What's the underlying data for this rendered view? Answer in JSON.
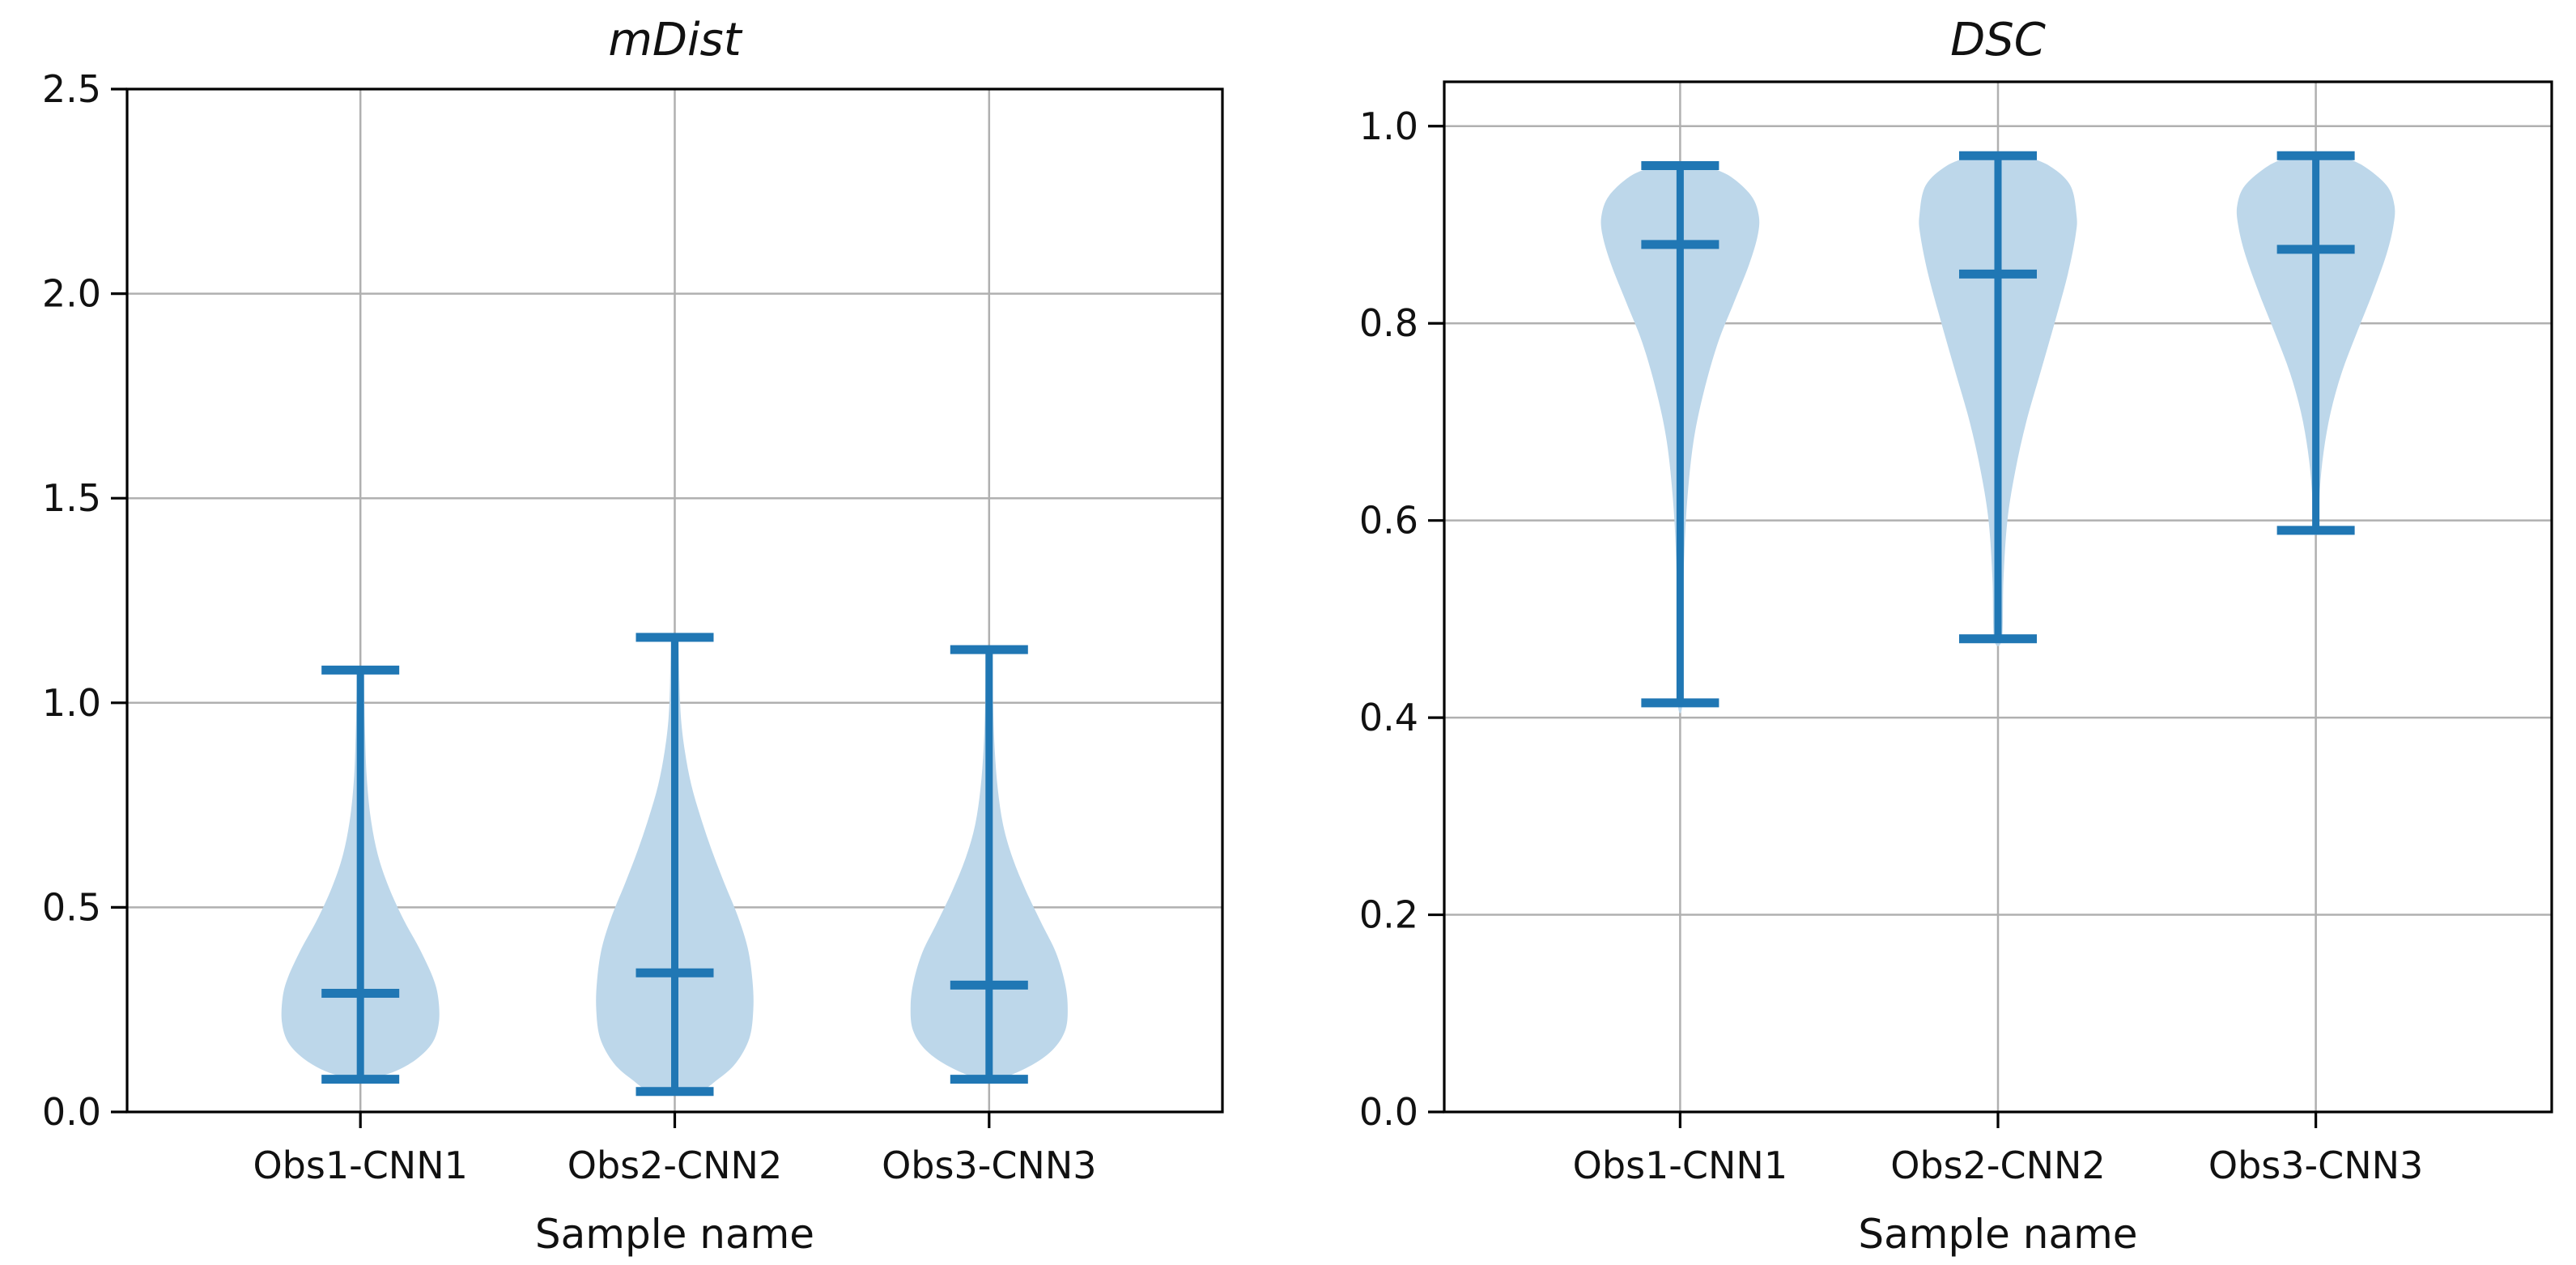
{
  "figure": {
    "background": "#ffffff",
    "type": "matplotlib-violin-figure"
  },
  "style": {
    "violin_fill": "#bdd7ea",
    "violin_line": "#2077b4",
    "grid_color": "#b0b0b0",
    "spine_color": "#000000",
    "text_color": "#111111"
  },
  "chart_data": [
    {
      "type": "violin",
      "title": "mDist",
      "xlabel": "Sample name",
      "categories": [
        "Obs1-CNN1",
        "Obs2-CNN2",
        "Obs3-CNN3"
      ],
      "ylim": [
        0.0,
        2.5
      ],
      "grid": true,
      "legend": "none",
      "yticks": [
        {
          "v": 0.0,
          "label": "0.0"
        },
        {
          "v": 0.5,
          "label": "0.5"
        },
        {
          "v": 1.0,
          "label": "1.0"
        },
        {
          "v": 1.5,
          "label": "1.5"
        },
        {
          "v": 2.0,
          "label": "2.0"
        },
        {
          "v": 2.5,
          "label": "2.5"
        }
      ],
      "series": [
        {
          "name": "Obs1-CNN1",
          "min": 0.08,
          "max": 1.08,
          "mean": 0.29,
          "profile": [
            [
              0.08,
              0.1
            ],
            [
              0.1,
              0.45
            ],
            [
              0.13,
              0.72
            ],
            [
              0.17,
              0.92
            ],
            [
              0.22,
              1.0
            ],
            [
              0.28,
              0.99
            ],
            [
              0.33,
              0.92
            ],
            [
              0.4,
              0.75
            ],
            [
              0.47,
              0.55
            ],
            [
              0.55,
              0.36
            ],
            [
              0.63,
              0.22
            ],
            [
              0.72,
              0.13
            ],
            [
              0.82,
              0.08
            ],
            [
              0.92,
              0.06
            ],
            [
              1.0,
              0.05
            ],
            [
              1.08,
              0.045
            ]
          ]
        },
        {
          "name": "Obs2-CNN2",
          "min": 0.05,
          "max": 1.16,
          "mean": 0.34,
          "profile": [
            [
              0.05,
              0.28
            ],
            [
              0.08,
              0.55
            ],
            [
              0.12,
              0.78
            ],
            [
              0.18,
              0.95
            ],
            [
              0.25,
              1.0
            ],
            [
              0.32,
              0.99
            ],
            [
              0.4,
              0.93
            ],
            [
              0.48,
              0.8
            ],
            [
              0.56,
              0.63
            ],
            [
              0.64,
              0.47
            ],
            [
              0.72,
              0.33
            ],
            [
              0.8,
              0.21
            ],
            [
              0.88,
              0.13
            ],
            [
              0.96,
              0.08
            ],
            [
              1.05,
              0.06
            ],
            [
              1.16,
              0.05
            ]
          ]
        },
        {
          "name": "Obs3-CNN3",
          "min": 0.08,
          "max": 1.13,
          "mean": 0.31,
          "profile": [
            [
              0.08,
              0.12
            ],
            [
              0.11,
              0.5
            ],
            [
              0.15,
              0.8
            ],
            [
              0.2,
              0.97
            ],
            [
              0.26,
              1.0
            ],
            [
              0.32,
              0.96
            ],
            [
              0.39,
              0.85
            ],
            [
              0.46,
              0.67
            ],
            [
              0.54,
              0.47
            ],
            [
              0.62,
              0.3
            ],
            [
              0.7,
              0.18
            ],
            [
              0.79,
              0.11
            ],
            [
              0.89,
              0.07
            ],
            [
              1.0,
              0.05
            ],
            [
              1.13,
              0.045
            ]
          ]
        }
      ]
    },
    {
      "type": "violin",
      "title": "DSC",
      "xlabel": "Sample name",
      "categories": [
        "Obs1-CNN1",
        "Obs2-CNN2",
        "Obs3-CNN3"
      ],
      "ylim": [
        0.0,
        1.045
      ],
      "grid": true,
      "legend": "none",
      "yticks": [
        {
          "v": 0.0,
          "label": "0.0"
        },
        {
          "v": 0.2,
          "label": "0.2"
        },
        {
          "v": 0.4,
          "label": "0.4"
        },
        {
          "v": 0.6,
          "label": "0.6"
        },
        {
          "v": 0.8,
          "label": "0.8"
        },
        {
          "v": 1.0,
          "label": "1.0"
        }
      ],
      "series": [
        {
          "name": "Obs1-CNN1",
          "min": 0.415,
          "max": 0.96,
          "mean": 0.88,
          "profile": [
            [
              0.415,
              0.03
            ],
            [
              0.5,
              0.035
            ],
            [
              0.56,
              0.05
            ],
            [
              0.62,
              0.09
            ],
            [
              0.68,
              0.17
            ],
            [
              0.73,
              0.3
            ],
            [
              0.78,
              0.48
            ],
            [
              0.82,
              0.68
            ],
            [
              0.86,
              0.88
            ],
            [
              0.89,
              0.99
            ],
            [
              0.91,
              1.0
            ],
            [
              0.93,
              0.9
            ],
            [
              0.95,
              0.62
            ],
            [
              0.96,
              0.3
            ]
          ]
        },
        {
          "name": "Obs2-CNN2",
          "min": 0.48,
          "max": 0.97,
          "mean": 0.85,
          "profile": [
            [
              0.48,
              0.05
            ],
            [
              0.54,
              0.07
            ],
            [
              0.6,
              0.12
            ],
            [
              0.65,
              0.22
            ],
            [
              0.7,
              0.36
            ],
            [
              0.75,
              0.54
            ],
            [
              0.8,
              0.72
            ],
            [
              0.85,
              0.89
            ],
            [
              0.89,
              0.99
            ],
            [
              0.91,
              1.0
            ],
            [
              0.94,
              0.92
            ],
            [
              0.96,
              0.65
            ],
            [
              0.97,
              0.32
            ]
          ]
        },
        {
          "name": "Obs3-CNN3",
          "min": 0.59,
          "max": 0.97,
          "mean": 0.875,
          "profile": [
            [
              0.59,
              0.035
            ],
            [
              0.63,
              0.05
            ],
            [
              0.67,
              0.1
            ],
            [
              0.71,
              0.19
            ],
            [
              0.75,
              0.33
            ],
            [
              0.79,
              0.52
            ],
            [
              0.83,
              0.72
            ],
            [
              0.87,
              0.9
            ],
            [
              0.9,
              0.99
            ],
            [
              0.92,
              1.0
            ],
            [
              0.94,
              0.9
            ],
            [
              0.96,
              0.6
            ],
            [
              0.97,
              0.3
            ]
          ]
        }
      ]
    }
  ]
}
